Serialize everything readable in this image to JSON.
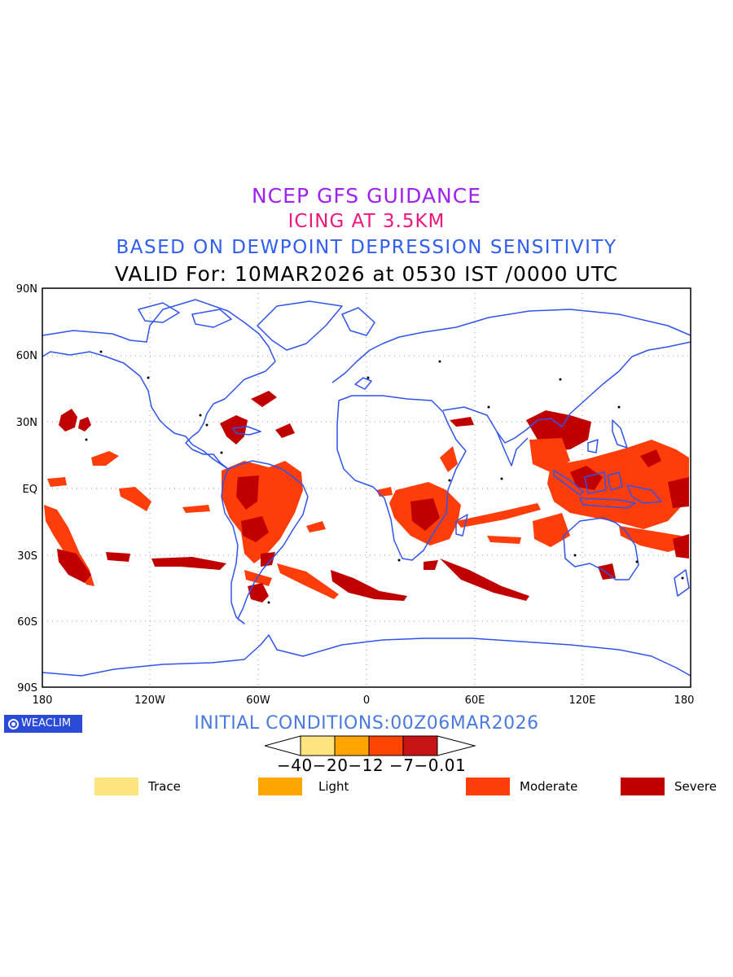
{
  "titles": {
    "line1": "NCEP GFS GUIDANCE",
    "line2": "ICING AT 3.5KM",
    "line3": "BASED ON DEWPOINT DEPRESSION SENSITIVITY",
    "line4": "VALID For: 10MAR2026 at 0530 IST /0000 UTC"
  },
  "axes": {
    "lat_labels": [
      "90N",
      "60N",
      "30N",
      "EQ",
      "30S",
      "60S",
      "90S"
    ],
    "lon_labels": [
      "180",
      "120W",
      "60W",
      "0",
      "60E",
      "120E",
      "180"
    ]
  },
  "branding": {
    "name": "WEACLIM"
  },
  "initial_conditions": "INITIAL CONDITIONS:00Z06MAR2026",
  "colorbar": {
    "ticks": "−40−20−12 −7−0.01",
    "colors": [
      "#fde47f",
      "#ffa500",
      "#ff4500",
      "#c81414"
    ]
  },
  "legend": [
    {
      "label": "Trace",
      "color": "#fde47f"
    },
    {
      "label": "Light",
      "color": "#ffa500"
    },
    {
      "label": "Moderate",
      "color": "#ff3d0a"
    },
    {
      "label": "Severe",
      "color": "#c00000"
    }
  ],
  "colors": {
    "coastline": "#2f54eb",
    "moderate": "#ff3d0a",
    "severe": "#c00000"
  }
}
